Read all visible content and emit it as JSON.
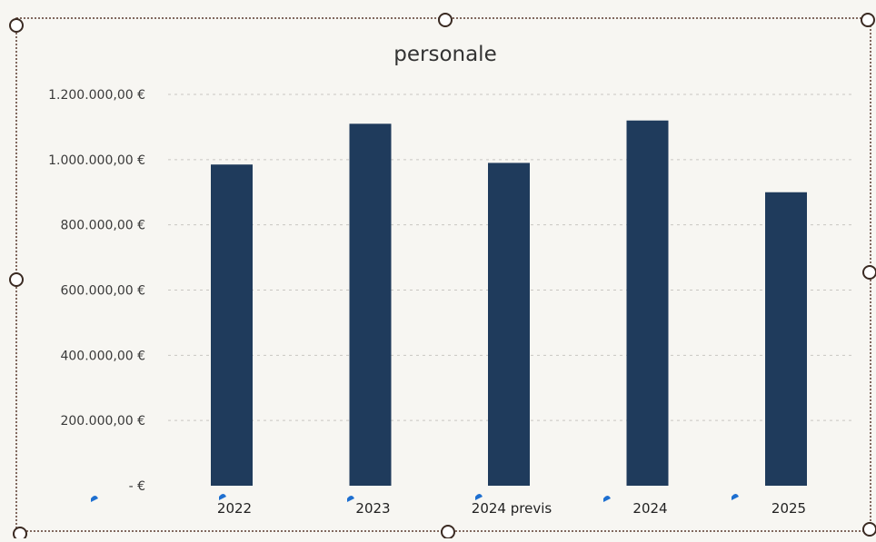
{
  "chart_data": {
    "type": "bar",
    "title": "personale",
    "xlabel": "",
    "ylabel": "",
    "categories": [
      "2022",
      "2023",
      "2024 previs",
      "2024",
      "2025"
    ],
    "values": [
      985000,
      1110000,
      990000,
      1120000,
      900000
    ],
    "ylim": [
      0,
      1200000
    ],
    "yticks": [
      0,
      200000,
      400000,
      600000,
      800000,
      1000000,
      1200000
    ],
    "ytick_labels": [
      "- €",
      "200.000,00 €",
      "400.000,00 €",
      "600.000,00 €",
      "800.000,00 €",
      "1.000.000,00 €",
      "1.200.000,00 €"
    ],
    "grid": true,
    "bar_color": "#1f3b5c",
    "frame_color": "#5a3a2e",
    "handle_marker_color": "#1e6fd0"
  }
}
